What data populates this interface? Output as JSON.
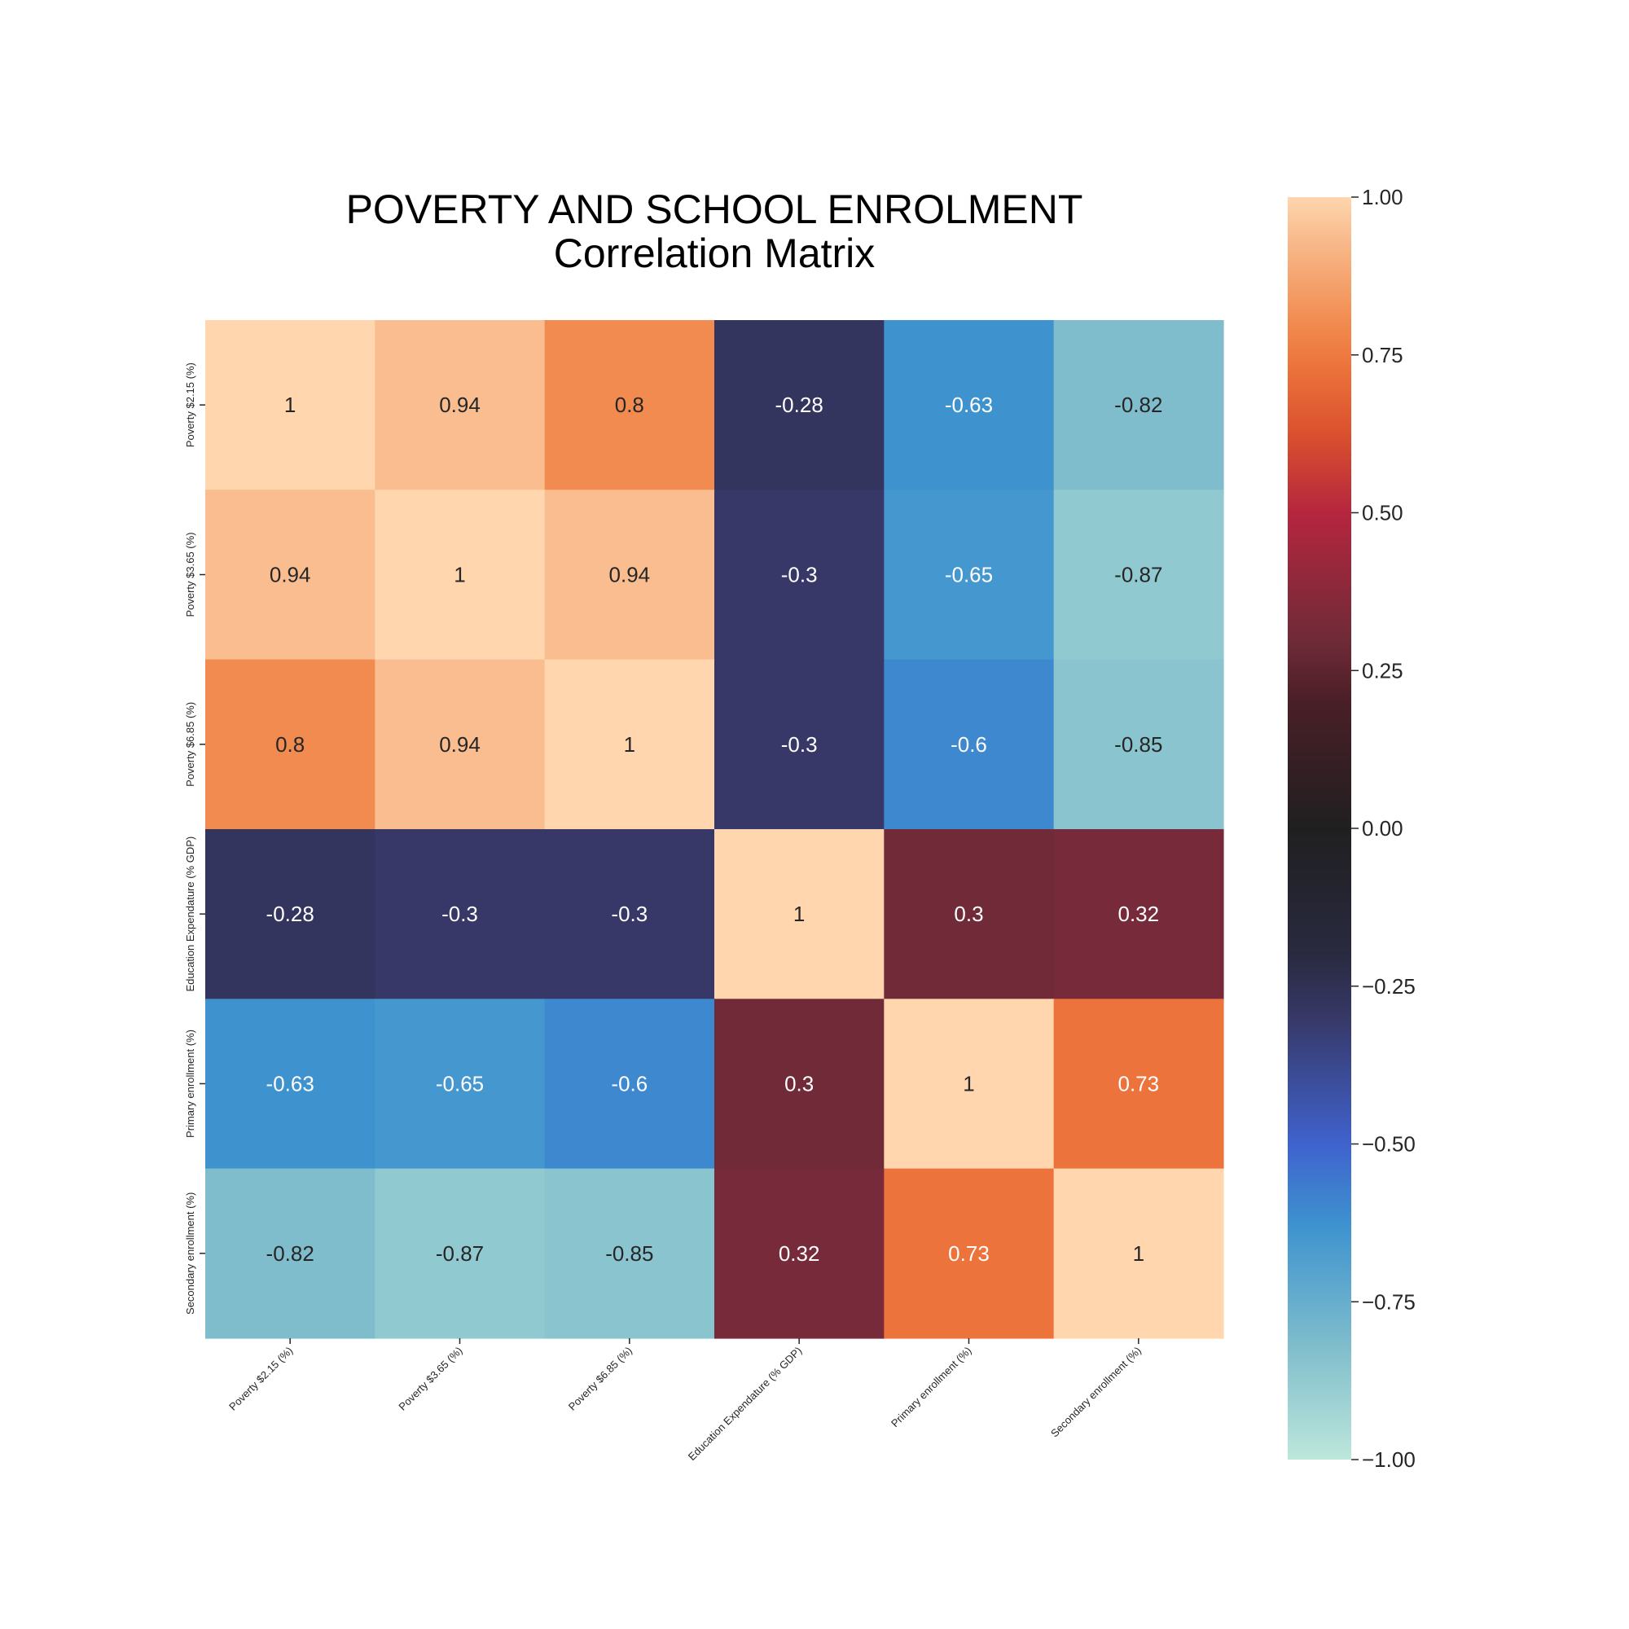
{
  "chart_data": {
    "type": "heatmap",
    "title": "POVERTY AND SCHOOL ENROLMENT",
    "subtitle": "Correlation Matrix",
    "row_labels": [
      "Poverty $2.15 (%)",
      "Poverty $3.65 (%)",
      "Poverty $6.85 (%)",
      "Education Expendature (% GDP)",
      "Primary enrollment (%)",
      "Secondary enrollment (%)"
    ],
    "col_labels": [
      "Poverty $2.15 (%)",
      "Poverty $3.65 (%)",
      "Poverty $6.85 (%)",
      "Education Expendature (% GDP)",
      "Primary enrollment (%)",
      "Secondary enrollment (%)"
    ],
    "values": [
      [
        1,
        0.94,
        0.8,
        -0.28,
        -0.63,
        -0.82
      ],
      [
        0.94,
        1,
        0.94,
        -0.3,
        -0.65,
        -0.87
      ],
      [
        0.8,
        0.94,
        1,
        -0.3,
        -0.6,
        -0.85
      ],
      [
        -0.28,
        -0.3,
        -0.3,
        1,
        0.3,
        0.32
      ],
      [
        -0.63,
        -0.65,
        -0.6,
        0.3,
        1,
        0.73
      ],
      [
        -0.82,
        -0.87,
        -0.85,
        0.32,
        0.73,
        1
      ]
    ],
    "annotations": [
      [
        "1",
        "0.94",
        "0.8",
        "-0.28",
        "-0.63",
        "-0.82"
      ],
      [
        "0.94",
        "1",
        "0.94",
        "-0.3",
        "-0.65",
        "-0.87"
      ],
      [
        "0.8",
        "0.94",
        "1",
        "-0.3",
        "-0.6",
        "-0.85"
      ],
      [
        "-0.28",
        "-0.3",
        "-0.3",
        "1",
        "0.3",
        "0.32"
      ],
      [
        "-0.63",
        "-0.65",
        "-0.6",
        "0.3",
        "1",
        "0.73"
      ],
      [
        "-0.82",
        "-0.87",
        "-0.85",
        "0.32",
        "0.73",
        "1"
      ]
    ],
    "colorbar": {
      "range": [
        -1,
        1
      ],
      "ticks": [
        "1.00",
        "0.75",
        "0.50",
        "0.25",
        "0.00",
        "−0.25",
        "−0.50",
        "−0.75",
        "−1.00"
      ],
      "tick_values": [
        1,
        0.75,
        0.5,
        0.25,
        0,
        -0.25,
        -0.5,
        -0.75,
        -1
      ]
    },
    "colormap": "icefire",
    "colormap_stops": [
      [
        -1.0,
        "#bde7db"
      ],
      [
        -0.82,
        "#7fbdcc"
      ],
      [
        -0.63,
        "#3e93cf"
      ],
      [
        -0.5,
        "#3f62cd"
      ],
      [
        -0.3,
        "#373867"
      ],
      [
        -0.2,
        "#292a40"
      ],
      [
        0.0,
        "#201f20"
      ],
      [
        0.2,
        "#4a1f27"
      ],
      [
        0.3,
        "#702a38"
      ],
      [
        0.5,
        "#b5263e"
      ],
      [
        0.62,
        "#d94f2e"
      ],
      [
        0.73,
        "#ec733b"
      ],
      [
        0.8,
        "#f18b4f"
      ],
      [
        0.94,
        "#f9bd90"
      ],
      [
        1.0,
        "#ffd6ae"
      ]
    ]
  }
}
